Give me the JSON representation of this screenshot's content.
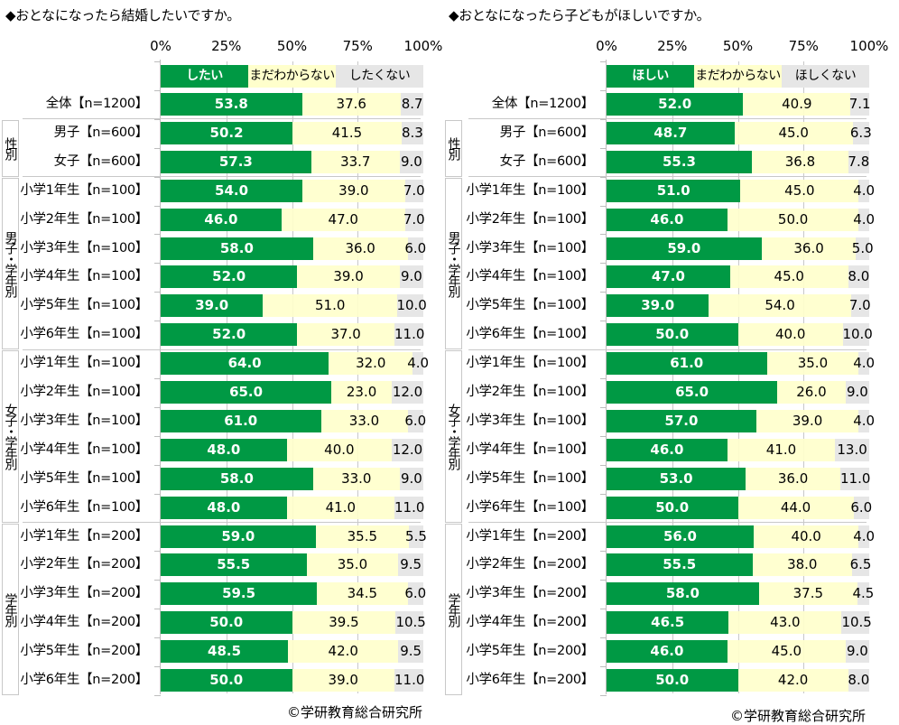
{
  "chart_data": [
    {
      "type": "bar",
      "orientation": "horizontal-stacked-100",
      "title": "◆おとなになったら結婚したいですか。",
      "source": "©学研教育総合研究所",
      "xlabel": "",
      "ylabel": "",
      "xlim": [
        0,
        100
      ],
      "xticks": [
        0,
        25,
        50,
        75,
        100
      ],
      "xtick_labels": [
        "0%",
        "25%",
        "50%",
        "75%",
        "100%"
      ],
      "grid": true,
      "legend_position": "top (inline row above bars)",
      "categories": [
        "全体【n=1200】",
        "男子【n=600】",
        "女子【n=600】",
        "小学1年生【n=100】",
        "小学2年生【n=100】",
        "小学3年生【n=100】",
        "小学4年生【n=100】",
        "小学5年生【n=100】",
        "小学6年生【n=100】",
        "小学1年生【n=100】",
        "小学2年生【n=100】",
        "小学3年生【n=100】",
        "小学4年生【n=100】",
        "小学5年生【n=100】",
        "小学6年生【n=100】",
        "小学1年生【n=200】",
        "小学2年生【n=200】",
        "小学3年生【n=200】",
        "小学4年生【n=200】",
        "小学5年生【n=200】",
        "小学6年生【n=200】"
      ],
      "groups": [
        {
          "label": "性別",
          "start": 1,
          "end": 2
        },
        {
          "label": "男子・学年別",
          "start": 3,
          "end": 8
        },
        {
          "label": "女子・学年別",
          "start": 9,
          "end": 14
        },
        {
          "label": "学年別",
          "start": 15,
          "end": 20
        }
      ],
      "separators_before": [
        1,
        3,
        9,
        15
      ],
      "series": [
        {
          "name": "したい",
          "color": "#009944",
          "label_color": "#ffffff",
          "values": [
            53.8,
            50.2,
            57.3,
            54.0,
            46.0,
            58.0,
            52.0,
            39.0,
            52.0,
            64.0,
            65.0,
            61.0,
            48.0,
            58.0,
            48.0,
            59.0,
            55.5,
            59.5,
            50.0,
            48.5,
            50.0
          ]
        },
        {
          "name": "まだわからない",
          "color": "#ffffcc",
          "label_color": "#000000",
          "values": [
            37.6,
            41.5,
            33.7,
            39.0,
            47.0,
            36.0,
            39.0,
            51.0,
            37.0,
            32.0,
            23.0,
            33.0,
            40.0,
            33.0,
            41.0,
            35.5,
            35.0,
            34.5,
            39.5,
            42.0,
            39.0
          ]
        },
        {
          "name": "したくない",
          "color": "#e6e6e6",
          "label_color": "#000000",
          "values": [
            8.7,
            8.3,
            9.0,
            7.0,
            7.0,
            6.0,
            9.0,
            10.0,
            11.0,
            4.0,
            12.0,
            6.0,
            12.0,
            9.0,
            11.0,
            5.5,
            9.5,
            6.0,
            10.5,
            9.5,
            11.0
          ]
        }
      ]
    },
    {
      "type": "bar",
      "orientation": "horizontal-stacked-100",
      "title": "◆おとなになったら子どもがほしいですか。",
      "source": "©学研教育総合研究所",
      "xlabel": "",
      "ylabel": "",
      "xlim": [
        0,
        100
      ],
      "xticks": [
        0,
        25,
        50,
        75,
        100
      ],
      "xtick_labels": [
        "0%",
        "25%",
        "50%",
        "75%",
        "100%"
      ],
      "grid": true,
      "legend_position": "top (inline row above bars)",
      "categories": [
        "全体【n=1200】",
        "男子【n=600】",
        "女子【n=600】",
        "小学1年生【n=100】",
        "小学2年生【n=100】",
        "小学3年生【n=100】",
        "小学4年生【n=100】",
        "小学5年生【n=100】",
        "小学6年生【n=100】",
        "小学1年生【n=100】",
        "小学2年生【n=100】",
        "小学3年生【n=100】",
        "小学4年生【n=100】",
        "小学5年生【n=100】",
        "小学6年生【n=100】",
        "小学1年生【n=200】",
        "小学2年生【n=200】",
        "小学3年生【n=200】",
        "小学4年生【n=200】",
        "小学5年生【n=200】",
        "小学6年生【n=200】"
      ],
      "groups": [
        {
          "label": "性別",
          "start": 1,
          "end": 2
        },
        {
          "label": "男子・学年別",
          "start": 3,
          "end": 8
        },
        {
          "label": "女子・学年別",
          "start": 9,
          "end": 14
        },
        {
          "label": "学年別",
          "start": 15,
          "end": 20
        }
      ],
      "separators_before": [
        1,
        3,
        9,
        15
      ],
      "series": [
        {
          "name": "ほしい",
          "color": "#009944",
          "label_color": "#ffffff",
          "values": [
            52.0,
            48.7,
            55.3,
            51.0,
            46.0,
            59.0,
            47.0,
            39.0,
            50.0,
            61.0,
            65.0,
            57.0,
            46.0,
            53.0,
            50.0,
            56.0,
            55.5,
            58.0,
            46.5,
            46.0,
            50.0
          ]
        },
        {
          "name": "まだわからない",
          "color": "#ffffcc",
          "label_color": "#000000",
          "values": [
            40.9,
            45.0,
            36.8,
            45.0,
            50.0,
            36.0,
            45.0,
            54.0,
            40.0,
            35.0,
            26.0,
            39.0,
            41.0,
            36.0,
            44.0,
            40.0,
            38.0,
            37.5,
            43.0,
            45.0,
            42.0
          ]
        },
        {
          "name": "ほしくない",
          "color": "#e6e6e6",
          "label_color": "#000000",
          "values": [
            7.1,
            6.3,
            7.8,
            4.0,
            4.0,
            5.0,
            8.0,
            7.0,
            10.0,
            4.0,
            9.0,
            4.0,
            13.0,
            11.0,
            6.0,
            4.0,
            6.5,
            4.5,
            10.5,
            9.0,
            8.0
          ]
        }
      ]
    }
  ]
}
